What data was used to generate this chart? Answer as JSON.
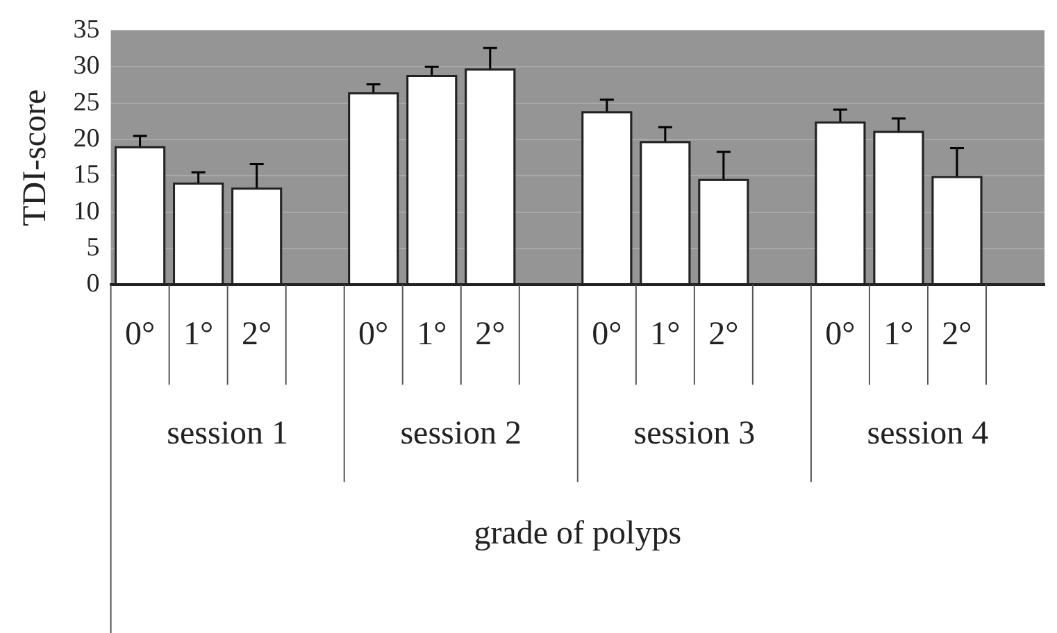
{
  "chart_data": {
    "type": "bar",
    "ylabel": "TDI-score",
    "xlabel": "grade of polyps",
    "categories": [
      "0°",
      "1°",
      "2°",
      null,
      "0°",
      "1°",
      "2°",
      null,
      "0°",
      "1°",
      "2°",
      null,
      "0°",
      "1°",
      "2°",
      null
    ],
    "values": [
      18.8,
      13.8,
      13.1,
      null,
      26.2,
      28.6,
      29.5,
      null,
      23.6,
      19.5,
      14.3,
      null,
      22.2,
      20.9,
      14.7,
      null
    ],
    "errors": [
      [
        18.8,
        20.5
      ],
      [
        13.8,
        15.5
      ],
      [
        13.1,
        16.6
      ],
      null,
      [
        26.2,
        27.6
      ],
      [
        28.6,
        30
      ],
      [
        29.5,
        32.6
      ],
      null,
      [
        23.6,
        25.5
      ],
      [
        19.5,
        21.7
      ],
      [
        14.3,
        18.3
      ],
      null,
      [
        22.2,
        24.1
      ],
      [
        20.9,
        22.9
      ],
      [
        14.7,
        18.8
      ],
      null
    ],
    "annotations": [
      "session 1",
      "session 2",
      "session 3",
      "session 4"
    ],
    "color": "#ffffff",
    "ylim": [
      0,
      35
    ],
    "yticks": [
      0,
      5,
      10,
      15,
      20,
      25,
      30,
      35
    ],
    "grid": "y",
    "legend": false
  }
}
